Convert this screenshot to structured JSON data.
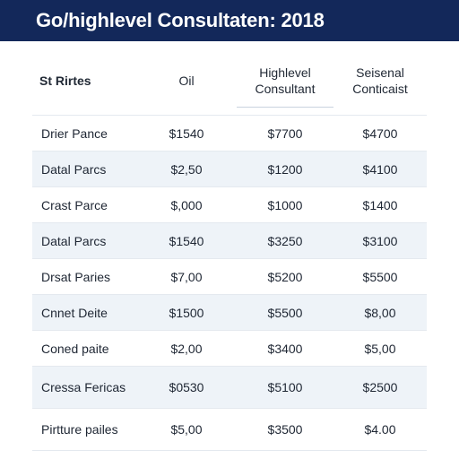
{
  "header": {
    "title": "Go/highlevel Consultaten: 2018"
  },
  "table": {
    "columns": [
      {
        "label": "St Rirtes"
      },
      {
        "label": "Oil"
      },
      {
        "label": "Highlevel Consultant"
      },
      {
        "label": "Seisenal Conticaist"
      }
    ],
    "rows": [
      {
        "name": "Drier Pance",
        "v1": "$1540",
        "v2": "$7700",
        "v3": "$4700"
      },
      {
        "name": "Datal Parcs",
        "v1": "$2,50",
        "v2": "$1200",
        "v3": "$4100"
      },
      {
        "name": "Crast Parce",
        "v1": "$,000",
        "v2": "$1000",
        "v3": "$1400"
      },
      {
        "name": "Datal Parcs",
        "v1": "$1540",
        "v2": "$3250",
        "v3": "$3100"
      },
      {
        "name": "Drsat Paries",
        "v1": "$7,00",
        "v2": "$5200",
        "v3": "$5500"
      },
      {
        "name": "Cnnet Deite",
        "v1": "$1500",
        "v2": "$5500",
        "v3": "$8,00"
      },
      {
        "name": "Coned paite",
        "v1": "$2,00",
        "v2": "$3400",
        "v3": "$5,00"
      },
      {
        "name": "Cressa Fericas",
        "v1": "$0530",
        "v2": "$5100",
        "v3": "$2500"
      },
      {
        "name": "Pirtture pailes",
        "v1": "$5,00",
        "v2": "$3500",
        "v3": "$4.00"
      }
    ]
  }
}
